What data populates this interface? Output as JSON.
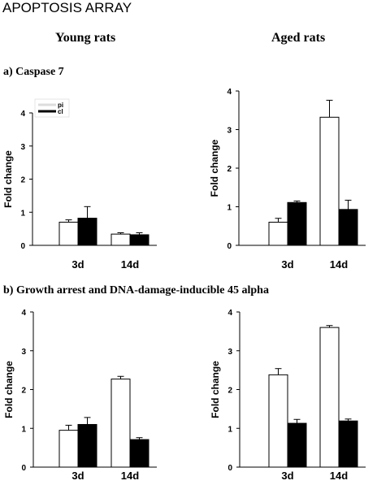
{
  "figure": {
    "title": "APOPTOSIS ARRAY",
    "columns": [
      "Young rats",
      "Aged rats"
    ],
    "sections": [
      "a) Caspase 7",
      "b) Growth arrest and DNA-damage-inducible 45 alpha"
    ]
  },
  "colors": {
    "pi": "#ffffff",
    "cl": "#000000",
    "axis": "#000000"
  },
  "chart_data": [
    {
      "type": "bar",
      "ylabel": "Fold change",
      "categories": [
        "3d",
        "14d"
      ],
      "ylim": [
        0,
        4
      ],
      "yticks": [
        0,
        1,
        2,
        3,
        4
      ],
      "legend": "top-left",
      "series": [
        {
          "name": "pi",
          "values": [
            0.7,
            0.34
          ],
          "errors": [
            0.07,
            0.04
          ]
        },
        {
          "name": "cl",
          "values": [
            0.82,
            0.32
          ],
          "errors": [
            0.35,
            0.06
          ]
        }
      ]
    },
    {
      "type": "bar",
      "ylabel": "Fold change",
      "categories": [
        "3d",
        "14d"
      ],
      "ylim": [
        0,
        4
      ],
      "yticks": [
        0,
        1,
        2,
        3,
        4
      ],
      "series": [
        {
          "name": "pi",
          "values": [
            0.6,
            3.32
          ],
          "errors": [
            0.1,
            0.44
          ]
        },
        {
          "name": "cl",
          "values": [
            1.11,
            0.93
          ],
          "errors": [
            0.04,
            0.24
          ]
        }
      ]
    },
    {
      "type": "bar",
      "ylabel": "Fold change",
      "categories": [
        "3d",
        "14d"
      ],
      "ylim": [
        0,
        4
      ],
      "yticks": [
        0,
        1,
        2,
        3,
        4
      ],
      "series": [
        {
          "name": "pi",
          "values": [
            0.95,
            2.27
          ],
          "errors": [
            0.13,
            0.07
          ]
        },
        {
          "name": "cl",
          "values": [
            1.1,
            0.71
          ],
          "errors": [
            0.18,
            0.05
          ]
        }
      ]
    },
    {
      "type": "bar",
      "ylabel": "Fold change",
      "categories": [
        "3d",
        "14d"
      ],
      "ylim": [
        0,
        4
      ],
      "yticks": [
        0,
        1,
        2,
        3,
        4
      ],
      "series": [
        {
          "name": "pi",
          "values": [
            2.38,
            3.6
          ],
          "errors": [
            0.16,
            0.05
          ]
        },
        {
          "name": "cl",
          "values": [
            1.13,
            1.19
          ],
          "errors": [
            0.1,
            0.05
          ]
        }
      ]
    }
  ]
}
